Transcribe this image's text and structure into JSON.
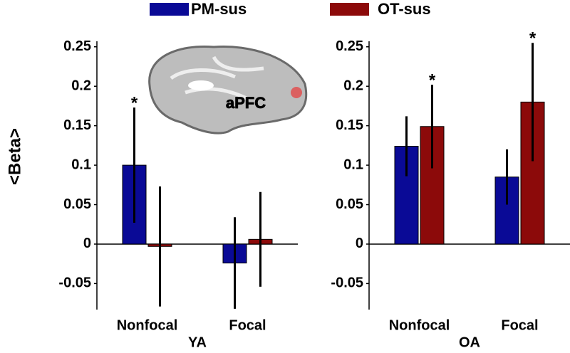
{
  "chart_data": [
    {
      "type": "bar",
      "ylabel": "<Beta>",
      "xlabel": "YA",
      "image_label": "aPFC",
      "categories": [
        "Nonfocal",
        "Focal"
      ],
      "series": [
        {
          "name": "PM-sus",
          "color": "#0a0a96",
          "values": [
            0.1,
            -0.024
          ],
          "errors": [
            0.073,
            0.058
          ],
          "annotations": [
            "*",
            null
          ]
        },
        {
          "name": "OT-sus",
          "color": "#8c0a0a",
          "values": [
            -0.003,
            0.006
          ],
          "errors": [
            0.076,
            0.06
          ],
          "annotations": [
            null,
            null
          ]
        }
      ],
      "ylim": [
        -0.083,
        0.257
      ],
      "yticks": [
        -0.05,
        0,
        0.05,
        0.1,
        0.15,
        0.2,
        0.25
      ]
    },
    {
      "type": "bar",
      "xlabel": "OA",
      "categories": [
        "Nonfocal",
        "Focal"
      ],
      "series": [
        {
          "color": "#0a0a96",
          "values": [
            0.124,
            0.085
          ],
          "errors": [
            0.038,
            0.035
          ],
          "annotations": [
            null,
            null
          ]
        },
        {
          "color": "#8c0a0a",
          "values": [
            0.149,
            0.18
          ],
          "errors": [
            0.053,
            0.075
          ],
          "annotations": [
            "*",
            "*"
          ]
        }
      ],
      "ylim": [
        -0.083,
        0.257
      ],
      "yticks": [
        -0.05,
        0,
        0.05,
        0.1,
        0.15,
        0.2,
        0.25
      ]
    }
  ]
}
